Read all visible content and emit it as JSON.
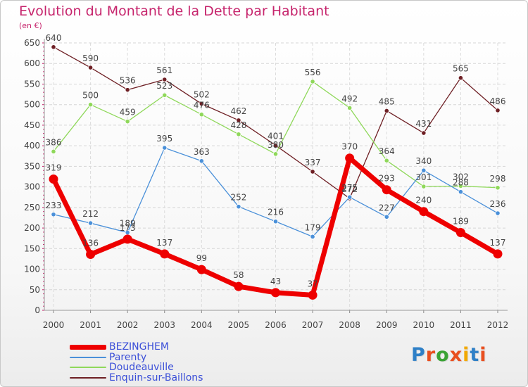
{
  "title": "Evolution du Montant de la Dette par Habitant",
  "subtitle": "(en €)",
  "logo": {
    "text": "Proxiti",
    "letter_colors": [
      "#2f80c7",
      "#e94f1f",
      "#3aa335",
      "#e94f1f",
      "#f2a900",
      "#2f80c7",
      "#e94f1f"
    ]
  },
  "chart_data": {
    "type": "line",
    "title": "Evolution du Montant de la Dette par Habitant",
    "ylabel": "(en €)",
    "xlabel": "",
    "x": [
      "2000",
      "2001",
      "2002",
      "2003",
      "2004",
      "2005",
      "2006",
      "2007",
      "2008",
      "2009",
      "2010",
      "2011",
      "2012"
    ],
    "ylim": [
      0,
      650
    ],
    "yticks": [
      0,
      50,
      100,
      150,
      200,
      250,
      300,
      350,
      400,
      450,
      500,
      550,
      600,
      650
    ],
    "grid": true,
    "legend": "bottom-left",
    "series": [
      {
        "name": "Enquin-sur-Baillons",
        "color": "#6e1f24",
        "values": [
          640,
          590,
          536,
          561,
          502,
          462,
          401,
          337,
          272,
          485,
          431,
          565,
          486
        ],
        "labels": [
          "640",
          "590",
          "536",
          "561",
          "502",
          "462",
          "401",
          "337",
          "272",
          "485",
          "431",
          "565",
          "486"
        ]
      },
      {
        "name": "Doudeauville",
        "color": "#8fd85a",
        "values": [
          386,
          500,
          459,
          523,
          476,
          428,
          380,
          556,
          492,
          364,
          301,
          302,
          298
        ],
        "labels": [
          "386",
          "500",
          "459",
          "523",
          "476",
          "428",
          "380",
          "556",
          "492",
          "364",
          "301",
          "302",
          "298"
        ]
      },
      {
        "name": "Parenty",
        "color": "#4a90d9",
        "values": [
          233,
          212,
          189,
          395,
          363,
          252,
          216,
          179,
          275,
          227,
          340,
          288,
          236
        ],
        "labels": [
          "233",
          "212",
          "189",
          "395",
          "363",
          "252",
          "216",
          "179",
          "275",
          "227",
          "340",
          "288",
          "236"
        ]
      },
      {
        "name": "BEZINGHEM",
        "color": "#ee0000",
        "values": [
          319,
          136,
          173,
          137,
          99,
          58,
          43,
          37,
          370,
          293,
          240,
          189,
          137
        ],
        "labels": [
          "319",
          "136",
          "173",
          "137",
          "99",
          "58",
          "43",
          "37",
          "370",
          "293",
          "240",
          "189",
          "137"
        ]
      }
    ]
  },
  "legend_items": [
    {
      "name": "BEZINGHEM",
      "color": "#ee0000",
      "thickness": 7
    },
    {
      "name": "Parenty",
      "color": "#4a90d9",
      "thickness": 2
    },
    {
      "name": "Doudeauville",
      "color": "#8fd85a",
      "thickness": 2
    },
    {
      "name": "Enquin-sur-Baillons",
      "color": "#6e1f24",
      "thickness": 2
    }
  ]
}
